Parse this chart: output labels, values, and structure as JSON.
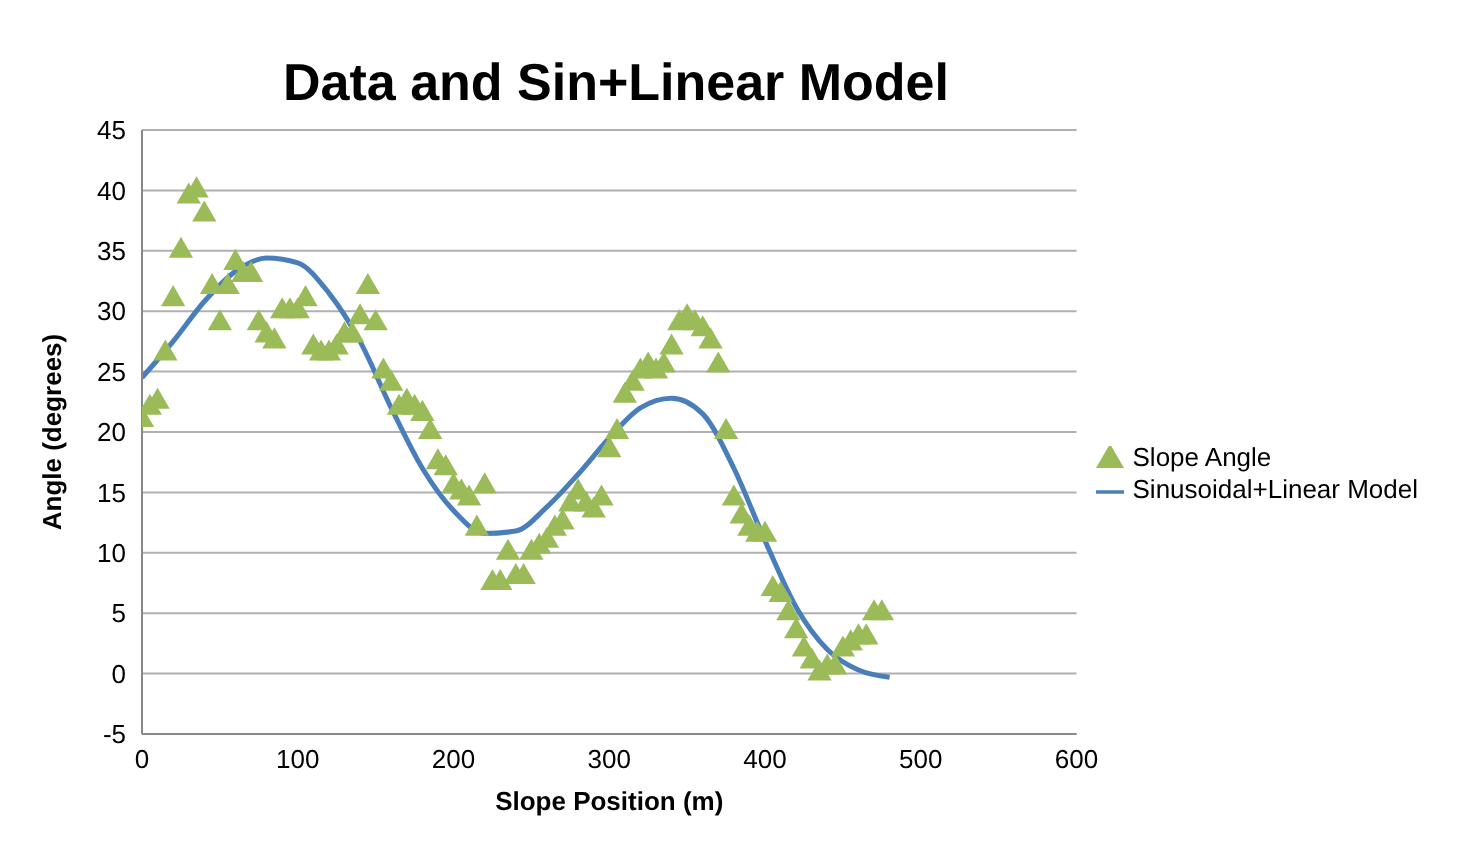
{
  "chart_data": {
    "type": "scatter",
    "title": "Data and Sin+Linear Model",
    "xlabel": "Slope Position (m)",
    "ylabel": "Angle (degrees)",
    "xlim": [
      0,
      600
    ],
    "xticks": [
      0,
      100,
      200,
      300,
      400,
      500,
      600
    ],
    "ylim": [
      -5,
      45
    ],
    "yticks": [
      -5,
      0,
      5,
      10,
      15,
      20,
      25,
      30,
      35,
      40,
      45
    ],
    "grid": "y",
    "legend": "right",
    "series": [
      {
        "name": "Slope Angle",
        "marker": "triangle",
        "color": "#9bbb59",
        "x": [
          0,
          5,
          10,
          15,
          20,
          25,
          30,
          35,
          40,
          45,
          50,
          55,
          60,
          65,
          70,
          75,
          80,
          85,
          90,
          95,
          100,
          105,
          110,
          115,
          120,
          125,
          130,
          135,
          140,
          145,
          150,
          155,
          160,
          165,
          170,
          175,
          180,
          185,
          190,
          195,
          200,
          205,
          210,
          215,
          220,
          225,
          230,
          235,
          240,
          245,
          250,
          255,
          260,
          265,
          270,
          275,
          280,
          285,
          290,
          295,
          300,
          305,
          310,
          315,
          320,
          325,
          330,
          335,
          340,
          345,
          350,
          355,
          360,
          365,
          370,
          375,
          380,
          385,
          390,
          395,
          400,
          405,
          410,
          415,
          420,
          425,
          430,
          435,
          440,
          445,
          450,
          455,
          460,
          465,
          470,
          475
        ],
        "values": [
          21,
          22,
          22.5,
          26.5,
          31,
          35,
          39.5,
          40,
          38,
          32,
          29,
          32,
          34,
          33,
          33,
          29,
          28,
          27.5,
          30,
          30,
          30,
          31,
          27,
          26.5,
          26.5,
          27,
          28,
          28,
          29.5,
          32,
          29,
          25,
          24,
          22,
          22.5,
          22,
          21.5,
          20,
          17.5,
          17,
          15.5,
          15,
          14.5,
          12,
          15.5,
          7.5,
          7.5,
          10,
          8,
          8,
          10,
          10.5,
          11,
          12,
          12.5,
          14,
          15,
          14,
          13.5,
          14.5,
          18.5,
          20,
          23,
          24,
          25,
          25.5,
          25,
          25.5,
          27,
          29,
          29.5,
          29,
          28.5,
          27.5,
          25.5,
          20,
          14.5,
          13,
          12,
          11.5,
          11.5,
          7,
          6.5,
          5,
          3.5,
          2,
          1,
          0,
          0.5,
          0.5,
          2,
          2.5,
          3,
          3,
          5,
          5
        ]
      },
      {
        "name": "Sinusoidal+Linear Model",
        "type": "line",
        "marker": "none",
        "line_style": "solid",
        "color": "#4a7ebb",
        "x": [
          0,
          20,
          40,
          60,
          80,
          100,
          120,
          140,
          160,
          180,
          200,
          220,
          240,
          260,
          280,
          300,
          320,
          340,
          360,
          380,
          400,
          420,
          440,
          460,
          480
        ],
        "values": [
          24.5,
          27.5,
          30.8,
          33.3,
          34.4,
          34,
          31.5,
          27.5,
          22,
          17,
          13.5,
          11.6,
          11.8,
          13.8,
          16.5,
          19.5,
          22,
          22.8,
          21.5,
          17,
          11,
          5.5,
          2,
          0.3,
          -0.3
        ]
      }
    ]
  }
}
